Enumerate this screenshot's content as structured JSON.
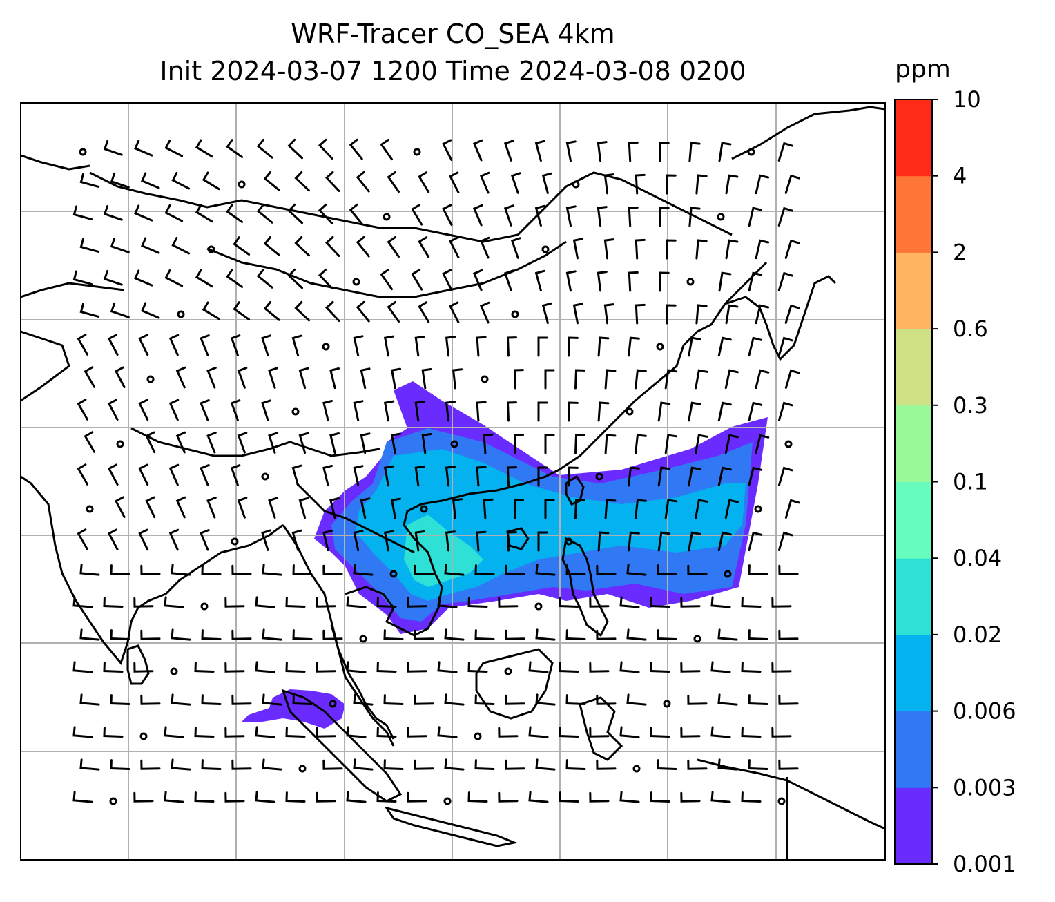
{
  "title": {
    "line1": "WRF-Tracer CO_SEA 4km",
    "line2": "Init 2024-03-07 1200 Time 2024-03-08 0200"
  },
  "colorbar": {
    "unit": "ppm",
    "levels": [
      "0.001",
      "0.003",
      "0.006",
      "0.02",
      "0.04",
      "0.1",
      "0.3",
      "0.6",
      "2",
      "4",
      "10"
    ],
    "colors": [
      "#6a2bff",
      "#3178f5",
      "#03b2ee",
      "#2fe0d6",
      "#65fcbe",
      "#99f99a",
      "#cfe185",
      "#feb462",
      "#ff7538",
      "#ff2a17"
    ]
  },
  "map": {
    "region": "Southeast Asia",
    "gridlines": true,
    "wind_barbs": true,
    "coastlines": true
  }
}
